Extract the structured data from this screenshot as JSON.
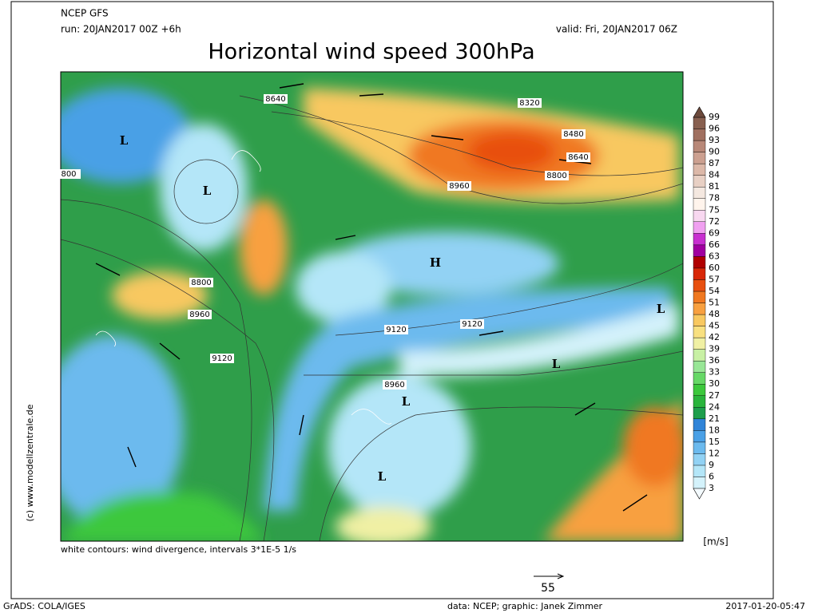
{
  "header": {
    "model": "NCEP GFS",
    "run": "run: 20JAN2017 00Z +6h",
    "valid": "valid: Fri, 20JAN2017 06Z",
    "title": "Horizontal wind speed 300hPa"
  },
  "map": {
    "contour_labels": [
      "8640",
      "8320",
      "8480",
      "8640",
      "8800",
      "8960",
      "800",
      "8800",
      "8960",
      "9120",
      "9120",
      "9120",
      "8960"
    ],
    "centers": [
      "L",
      "L",
      "H",
      "L",
      "L",
      "L",
      "L"
    ]
  },
  "colorbar": {
    "labels": [
      "3",
      "6",
      "9",
      "12",
      "15",
      "18",
      "21",
      "24",
      "27",
      "30",
      "33",
      "36",
      "39",
      "42",
      "45",
      "48",
      "51",
      "54",
      "57",
      "60",
      "63",
      "66",
      "69",
      "72",
      "75",
      "78",
      "81",
      "84",
      "87",
      "90",
      "93",
      "96",
      "99"
    ],
    "colors": [
      "#f4fbff",
      "#d4f2fb",
      "#b4e6f8",
      "#92d2f4",
      "#6cbaee",
      "#4aa0e6",
      "#3084d8",
      "#1e9e4c",
      "#2ab43c",
      "#3cc83c",
      "#66d866",
      "#98e696",
      "#c8f0a4",
      "#f0f0a4",
      "#f8e080",
      "#f8c860",
      "#f8a040",
      "#f07820",
      "#e85010",
      "#d82808",
      "#b00000",
      "#a000a0",
      "#c830d0",
      "#f0a0f0",
      "#f8d8f0",
      "#fff4ec",
      "#f4e8e0",
      "#e8d0c4",
      "#dcb8a8",
      "#cca090",
      "#b88878",
      "#a07060",
      "#886050",
      "#6c4a3c"
    ],
    "unit": "[m/s]"
  },
  "footer": {
    "note": "white contours: wind divergence, intervals 3*1E-5 1/s",
    "copyright": "(c) www.modellzentrale.de",
    "reference_vector": "55",
    "software": "GrADS: COLA/IGES",
    "credit": "data: NCEP; graphic: Janek Zimmer",
    "timestamp": "2017-01-20-05:47"
  }
}
